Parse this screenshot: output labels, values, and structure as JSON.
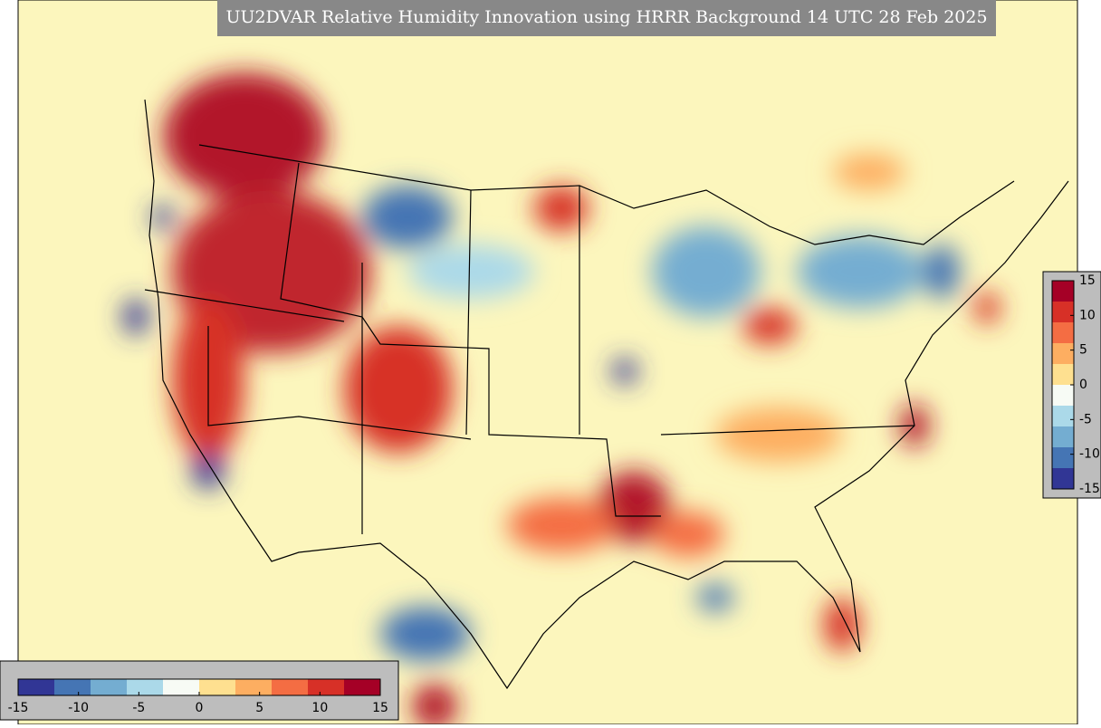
{
  "title": "UU2DVAR Relative Humidity Innovation using HRRR Background 14 UTC 28 Feb 2025",
  "colormap": [
    "#313695",
    "#4575b4",
    "#74add1",
    "#abd9e9",
    "#f7fbf5",
    "#fee090",
    "#fdae61",
    "#f46d43",
    "#d73027",
    "#a50026"
  ],
  "colorbars": [
    {
      "orientation": "vertical",
      "range": [
        -15,
        15
      ],
      "ticks": [
        15,
        10,
        5,
        0,
        -5,
        -10,
        -15
      ]
    },
    {
      "orientation": "horizontal",
      "range": [
        -15,
        15
      ],
      "ticks": [
        -15,
        -10,
        -5,
        0,
        5,
        10,
        15
      ]
    }
  ]
}
